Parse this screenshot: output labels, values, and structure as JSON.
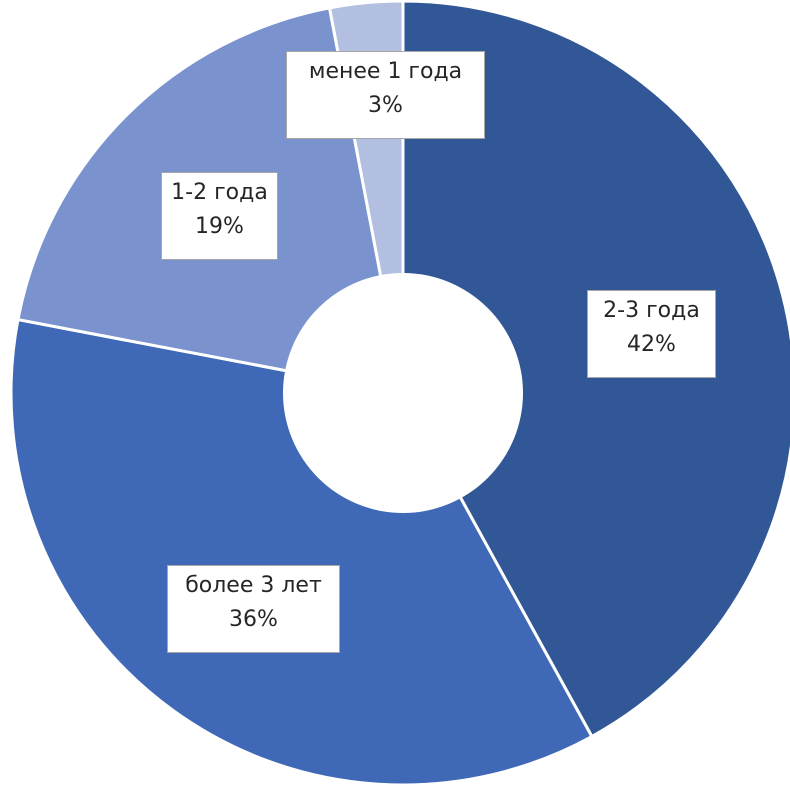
{
  "chart_data": {
    "type": "pie",
    "donut": true,
    "start_angle_deg": 0,
    "direction": "clockwise",
    "title": "",
    "legend": "none",
    "slices": [
      {
        "name": "2-3 года",
        "value": 42,
        "label": "42%",
        "color": "#325797"
      },
      {
        "name": "более 3 лет",
        "value": 36,
        "label": "36%",
        "color": "#3f69b7"
      },
      {
        "name": "1-2 года",
        "value": 19,
        "label": "19%",
        "color": "#7a93cf"
      },
      {
        "name": "менее 1 года",
        "value": 3,
        "label": "3%",
        "color": "#b2bfe1"
      }
    ]
  }
}
